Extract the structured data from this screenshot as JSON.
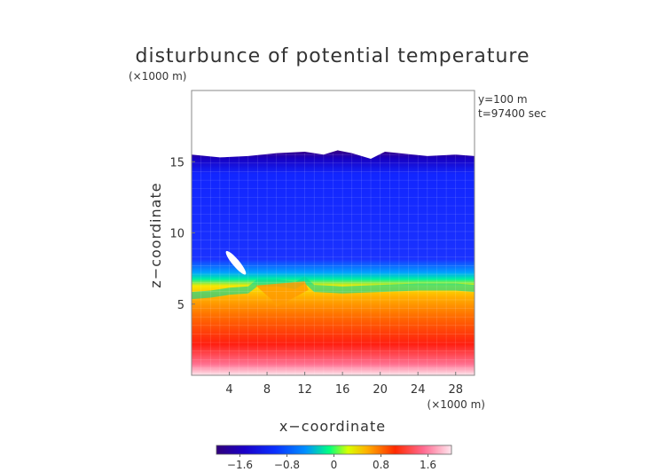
{
  "chart_data": {
    "type": "heatmap",
    "title": "disturbunce of potential temperature",
    "z_unit_label": "(×1000 m)",
    "x_unit_label": "(×1000 m)",
    "xlabel": "x−coordinate",
    "ylabel": "z−coordinate",
    "annotations": [
      "y=100 m",
      "t=97400 sec"
    ],
    "xlim": [
      0,
      30
    ],
    "ylim": [
      0,
      20
    ],
    "x_ticks": [
      4,
      8,
      12,
      16,
      20,
      24,
      28
    ],
    "x_tick_labels": [
      "4",
      "8",
      "12",
      "16",
      "20",
      "24",
      "28"
    ],
    "y_ticks": [
      5,
      10,
      15
    ],
    "y_tick_labels": [
      "5",
      "10",
      "15"
    ],
    "colorbar": {
      "range": [
        -2.0,
        2.0
      ],
      "ticks": [
        -1.6,
        -0.8,
        0,
        0.8,
        1.6
      ],
      "tick_labels": [
        "−1.6",
        "−0.8",
        "0",
        "0.8",
        "1.6"
      ]
    },
    "field_regions": [
      {
        "z_range": [
          15.6,
          20
        ],
        "value": null
      },
      {
        "z_range": [
          6.3,
          15.6
        ],
        "value": -1.3
      },
      {
        "z_range": [
          5.4,
          6.3
        ],
        "value": 0.0
      },
      {
        "z_range": [
          3.5,
          5.4
        ],
        "value": 0.9
      },
      {
        "z_range": [
          1.0,
          3.5
        ],
        "value": 1.6
      },
      {
        "z_range": [
          0,
          1.0
        ],
        "value": 1.9
      }
    ],
    "top_boundary_profile": {
      "x": [
        0,
        3,
        6,
        9,
        12,
        14,
        15.5,
        17,
        19,
        20.5,
        22,
        25,
        28,
        30
      ],
      "z": [
        15.5,
        15.3,
        15.4,
        15.6,
        15.7,
        15.5,
        15.8,
        15.6,
        15.2,
        15.7,
        15.6,
        15.4,
        15.5,
        15.4
      ]
    },
    "interface_profile": {
      "x": [
        0,
        2,
        4,
        6,
        7,
        9,
        11,
        12,
        13,
        16,
        20,
        24,
        28,
        30
      ],
      "z": [
        5.6,
        5.7,
        5.9,
        6.0,
        6.5,
        6.5,
        6.3,
        6.7,
        6.1,
        6.0,
        6.1,
        6.2,
        6.2,
        6.1
      ]
    },
    "colorscale": [
      "#30007a",
      "#1a00c8",
      "#0a20ff",
      "#0090ff",
      "#00ff80",
      "#e0ff00",
      "#ffb000",
      "#ff2000",
      "#ff6080",
      "#ffd0e0",
      "#ffffff"
    ]
  }
}
